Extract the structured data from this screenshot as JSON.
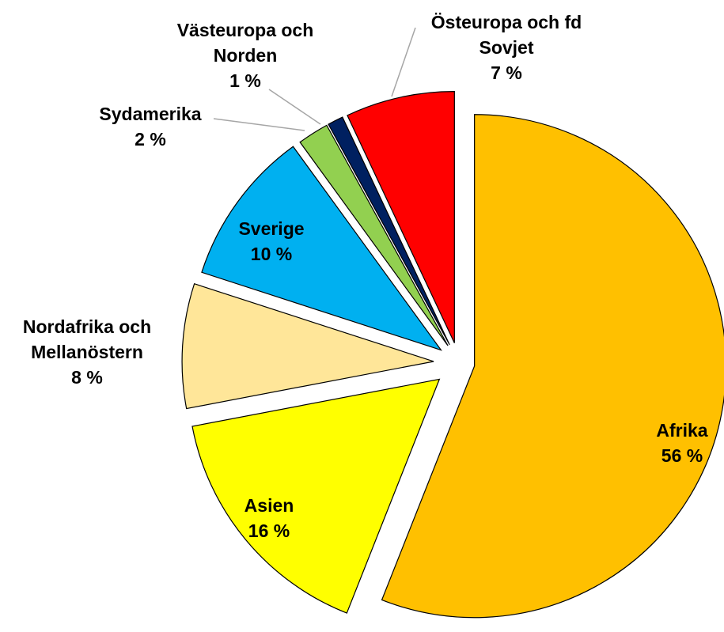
{
  "chart_data": {
    "type": "pie",
    "categories": [
      "Afrika",
      "Asien",
      "Nordafrika och Mellanöstern",
      "Sverige",
      "Sydamerika",
      "Västeuropa och Norden",
      "Östeuropa och fd Sovjet"
    ],
    "values": [
      56,
      16,
      8,
      10,
      2,
      1,
      7
    ],
    "value_labels": [
      "56 %",
      "16 %",
      "8 %",
      "10 %",
      "2 %",
      "1 %",
      "7 %"
    ],
    "colors": [
      "#FFC000",
      "#FFFF00",
      "#FFE699",
      "#00B0F0",
      "#92D050",
      "#002060",
      "#FF0000"
    ]
  }
}
